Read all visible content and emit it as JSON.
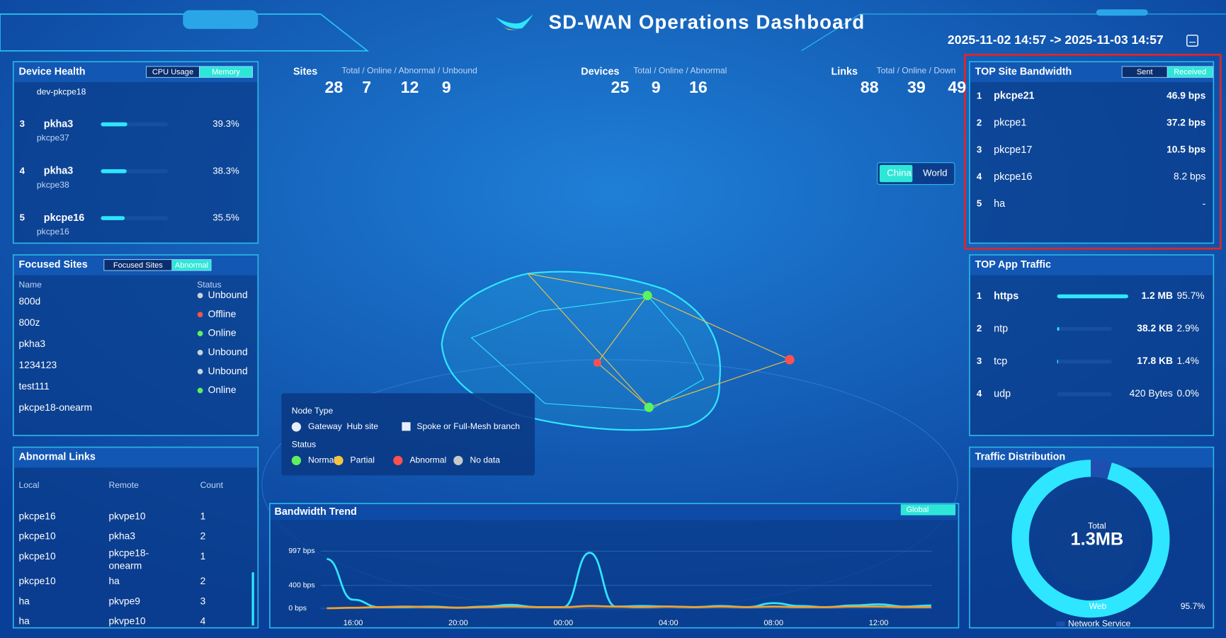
{
  "header": {
    "title": "SD-WAN Operations Dashboard",
    "time_range": "2025-11-02 14:57 -> 2025-11-03 14:57"
  },
  "device_health": {
    "title": "Device Health",
    "tabs": [
      "CPU Usage",
      "Memory"
    ],
    "partial_row": "dev-pkcpe18",
    "rows": [
      {
        "rank": 3,
        "name": "pkha3",
        "device": "pkcpe37",
        "usage": {
          "value": 39.3,
          "label": "39.3%"
        }
      },
      {
        "rank": 4,
        "name": "pkha3",
        "device": "pkcpe38",
        "usage": {
          "value": 38.3,
          "label": "38.3%"
        }
      },
      {
        "rank": 5,
        "name": "pkcpe16",
        "device": "pkcpe16",
        "usage": {
          "value": 35.5,
          "label": "35.5%"
        }
      }
    ]
  },
  "stats": [
    {
      "label": "Sites",
      "legend": "Total / Online / Abnormal / Unbound",
      "values": [
        28,
        7,
        12,
        9
      ]
    },
    {
      "label": "Devices",
      "legend": "Total / Online / Abnormal",
      "values": [
        25,
        9,
        16
      ]
    },
    {
      "label": "Links",
      "legend": "Total / Online / Down",
      "values": [
        88,
        39,
        49
      ]
    }
  ],
  "map": {
    "toggle": [
      "China",
      "World"
    ],
    "legend": {
      "node_type_title": "Node Type",
      "node_types": [
        "Gateway  Hub site",
        "Spoke or Full-Mesh branch"
      ],
      "status_title": "Status",
      "statuses": [
        "Normal",
        "Partial",
        "Abnormal",
        "No data"
      ]
    }
  },
  "focused_sites": {
    "title": "Focused Sites",
    "tabs": [
      "Focused Sites",
      "Abnormal"
    ],
    "columns": [
      "Name",
      "Status"
    ],
    "names": [
      "800d",
      "800z",
      "pkha3",
      "1234123",
      "test111",
      "pkcpe18-onearm"
    ],
    "statuses": [
      "Unbound",
      "Offline",
      "Online",
      "Unbound",
      "Unbound",
      "Online"
    ]
  },
  "abnormal_links": {
    "title": "Abnormal Links",
    "columns": [
      "Local",
      "Remote",
      "Count"
    ],
    "rows": [
      [
        "pkcpe16",
        "pkvpe10",
        1
      ],
      [
        "pkcpe10",
        "pkha3",
        2
      ],
      [
        "pkcpe10",
        "pkcpe18-onearm",
        1
      ],
      [
        "pkcpe10",
        "ha",
        2
      ],
      [
        "ha",
        "pkvpe9",
        3
      ],
      [
        "ha",
        "pkvpe10",
        4
      ]
    ]
  },
  "bandwidth_trend": {
    "title": "Bandwidth Trend",
    "tab": "Global",
    "chart_data": {
      "type": "line",
      "categories": [
        null,
        "16:00",
        null,
        null,
        null,
        "20:00",
        null,
        null,
        null,
        "00:00",
        null,
        null,
        null,
        "04:00",
        null,
        null,
        null,
        "08:00",
        null,
        null,
        null,
        "12:00",
        null,
        null
      ],
      "series": [
        {
          "color": "#2ee6ff",
          "values": [
            860,
            150,
            20,
            20,
            30,
            10,
            30,
            60,
            20,
            20,
            970,
            30,
            40,
            30,
            20,
            40,
            20,
            90,
            40,
            20,
            50,
            70,
            30,
            50
          ]
        },
        {
          "color": "#f0a030",
          "values": [
            0,
            10,
            20,
            30,
            20,
            10,
            20,
            30,
            20,
            20,
            40,
            30,
            20,
            30,
            20,
            30,
            20,
            30,
            20,
            20,
            30,
            30,
            20,
            20
          ]
        }
      ],
      "ylim": [
        0,
        1000
      ],
      "yticks": [
        {
          "value": 0,
          "label": "0 bps"
        },
        {
          "value": 400,
          "label": "400 bps"
        },
        {
          "value": 997,
          "label": "997 bps"
        }
      ],
      "grid": true
    }
  },
  "top_site_bandwidth": {
    "title": "TOP Site Bandwidth",
    "tabs": [
      "Sent",
      "Received"
    ],
    "rows": [
      {
        "rank": 1,
        "name": "pkcpe21",
        "value": "46.9 bps"
      },
      {
        "rank": 2,
        "name": "pkcpe1",
        "value": "37.2 bps"
      },
      {
        "rank": 3,
        "name": "pkcpe17",
        "value": "10.5 bps"
      },
      {
        "rank": 4,
        "name": "pkcpe16",
        "value": "8.2 bps"
      },
      {
        "rank": 5,
        "name": "ha",
        "value": "-"
      }
    ]
  },
  "top_app_traffic": {
    "title": "TOP App Traffic",
    "rows": [
      {
        "rank": 1,
        "name": "https",
        "size": "1.2 MB",
        "share": {
          "value": 95.7,
          "label": "95.7%"
        }
      },
      {
        "rank": 2,
        "name": "ntp",
        "size": "38.2 KB",
        "share": {
          "value": 2.9,
          "label": "2.9%"
        }
      },
      {
        "rank": 3,
        "name": "tcp",
        "size": "17.8 KB",
        "share": {
          "value": 1.4,
          "label": "1.4%"
        }
      },
      {
        "rank": 4,
        "name": "udp",
        "size": "420 Bytes",
        "share": {
          "value": 0.0,
          "label": "0.0%"
        }
      }
    ]
  },
  "traffic_distribution": {
    "title": "Traffic Distribution",
    "total_label": "Total",
    "total": "1.3MB",
    "chart_data": {
      "type": "pie",
      "segments": [
        {
          "name": "Network Service",
          "value": 4.3,
          "color": "#1e4fb0"
        },
        {
          "name": "Web",
          "value": 95.7,
          "label": "95.7%",
          "color": "#2ee6ff"
        }
      ]
    }
  }
}
